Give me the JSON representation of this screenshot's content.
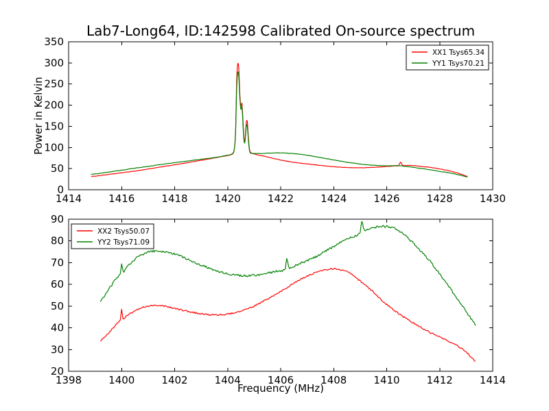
{
  "figure": {
    "title": "Lab7-Long64, ID:142598 Calibrated On-source spectrum",
    "background": "#ffffff",
    "axis_color": "#000000"
  },
  "chart_data": [
    {
      "type": "line",
      "subplot": "top",
      "title": "",
      "xlabel": "",
      "ylabel": "Power in Kelvin",
      "xlim": [
        1414,
        1430
      ],
      "ylim": [
        0,
        350
      ],
      "xticks": [
        1414,
        1416,
        1418,
        1420,
        1422,
        1424,
        1426,
        1428,
        1430
      ],
      "yticks": [
        0,
        50,
        100,
        150,
        200,
        250,
        300,
        350
      ],
      "grid": false,
      "legend_position": "upper right",
      "series": [
        {
          "name": "XX1 Tsys65.34",
          "color": "#ff0000",
          "noise_k": 0.4,
          "points": [
            [
              1414.85,
              31
            ],
            [
              1415.3,
              34.5
            ],
            [
              1415.8,
              38.5
            ],
            [
              1416.3,
              42.5
            ],
            [
              1416.8,
              47
            ],
            [
              1417.3,
              52
            ],
            [
              1417.8,
              57
            ],
            [
              1418.3,
              62
            ],
            [
              1418.8,
              67.5
            ],
            [
              1419.3,
              73
            ],
            [
              1419.7,
              77.5
            ],
            [
              1420.0,
              81
            ],
            [
              1420.1,
              82.5
            ],
            [
              1420.2,
              86
            ],
            [
              1420.25,
              95
            ],
            [
              1420.3,
              140
            ],
            [
              1420.34,
              260
            ],
            [
              1420.38,
              298
            ],
            [
              1420.42,
              288
            ],
            [
              1420.46,
              225
            ],
            [
              1420.5,
              197
            ],
            [
              1420.54,
              205
            ],
            [
              1420.58,
              160
            ],
            [
              1420.62,
              118
            ],
            [
              1420.66,
              122
            ],
            [
              1420.7,
              158
            ],
            [
              1420.74,
              162
            ],
            [
              1420.78,
              125
            ],
            [
              1420.82,
              97
            ],
            [
              1420.86,
              89
            ],
            [
              1420.95,
              85.5
            ],
            [
              1421.1,
              83
            ],
            [
              1421.4,
              79
            ],
            [
              1421.8,
              73
            ],
            [
              1422.2,
              68
            ],
            [
              1422.6,
              64
            ],
            [
              1423.0,
              61
            ],
            [
              1423.5,
              57.5
            ],
            [
              1424.0,
              54.5
            ],
            [
              1424.5,
              52.5
            ],
            [
              1425.0,
              52
            ],
            [
              1425.5,
              53
            ],
            [
              1426.0,
              55
            ],
            [
              1426.3,
              56.5
            ],
            [
              1426.45,
              57.2
            ],
            [
              1426.52,
              65
            ],
            [
              1426.6,
              58
            ],
            [
              1426.9,
              57.5
            ],
            [
              1427.2,
              56
            ],
            [
              1427.5,
              54
            ],
            [
              1427.9,
              50.5
            ],
            [
              1428.3,
              45.5
            ],
            [
              1428.7,
              39
            ],
            [
              1429.05,
              31.5
            ]
          ]
        },
        {
          "name": "YY1 Tsys70.21",
          "color": "#008000",
          "noise_k": 0.4,
          "points": [
            [
              1414.85,
              36
            ],
            [
              1415.3,
              40
            ],
            [
              1415.8,
              44.5
            ],
            [
              1416.3,
              49
            ],
            [
              1416.8,
              53.5
            ],
            [
              1417.3,
              58
            ],
            [
              1417.8,
              62.5
            ],
            [
              1418.3,
              66.5
            ],
            [
              1418.8,
              70.5
            ],
            [
              1419.3,
              74.5
            ],
            [
              1419.7,
              78
            ],
            [
              1420.0,
              82
            ],
            [
              1420.1,
              83
            ],
            [
              1420.2,
              87
            ],
            [
              1420.25,
              96
            ],
            [
              1420.3,
              135
            ],
            [
              1420.34,
              240
            ],
            [
              1420.38,
              278
            ],
            [
              1420.42,
              268
            ],
            [
              1420.46,
              215
            ],
            [
              1420.5,
              190
            ],
            [
              1420.54,
              197
            ],
            [
              1420.58,
              152
            ],
            [
              1420.62,
              113
            ],
            [
              1420.66,
              117
            ],
            [
              1420.7,
              148
            ],
            [
              1420.74,
              152
            ],
            [
              1420.78,
              118
            ],
            [
              1420.82,
              94
            ],
            [
              1420.86,
              87
            ],
            [
              1420.95,
              86
            ],
            [
              1421.2,
              85.8
            ],
            [
              1421.6,
              86.8
            ],
            [
              1422.0,
              87.3
            ],
            [
              1422.4,
              86
            ],
            [
              1422.8,
              83.5
            ],
            [
              1423.2,
              79.5
            ],
            [
              1423.6,
              75
            ],
            [
              1424.0,
              70.5
            ],
            [
              1424.4,
              66
            ],
            [
              1424.8,
              62.5
            ],
            [
              1425.2,
              59.5
            ],
            [
              1425.6,
              57.5
            ],
            [
              1426.0,
              56.8
            ],
            [
              1426.4,
              57
            ],
            [
              1426.7,
              55.5
            ],
            [
              1427.0,
              53
            ],
            [
              1427.4,
              49.5
            ],
            [
              1427.8,
              45.5
            ],
            [
              1428.2,
              41.5
            ],
            [
              1428.6,
              37
            ],
            [
              1429.05,
              30
            ]
          ]
        }
      ]
    },
    {
      "type": "line",
      "subplot": "bottom",
      "title": "",
      "xlabel": "Frequency (MHz)",
      "ylabel": "",
      "xlim": [
        1398,
        1414
      ],
      "ylim": [
        20,
        90
      ],
      "xticks": [
        1398,
        1400,
        1402,
        1404,
        1406,
        1408,
        1410,
        1412,
        1414
      ],
      "yticks": [
        20,
        30,
        40,
        50,
        60,
        70,
        80,
        90
      ],
      "grid": false,
      "legend_position": "upper left",
      "series": [
        {
          "name": "XX2 Tsys50.07",
          "color": "#ff0000",
          "noise_k": 0.35,
          "points": [
            [
              1399.2,
              34
            ],
            [
              1399.45,
              37
            ],
            [
              1399.7,
              40.3
            ],
            [
              1399.9,
              43
            ],
            [
              1399.95,
              43.5
            ],
            [
              1400.0,
              48.4
            ],
            [
              1400.05,
              44.2
            ],
            [
              1400.2,
              45.6
            ],
            [
              1400.45,
              47.5
            ],
            [
              1400.7,
              49
            ],
            [
              1401.0,
              50
            ],
            [
              1401.3,
              50.3
            ],
            [
              1401.6,
              50
            ],
            [
              1401.9,
              49.3
            ],
            [
              1402.2,
              48.4
            ],
            [
              1402.6,
              47.3
            ],
            [
              1403.0,
              46.5
            ],
            [
              1403.4,
              46
            ],
            [
              1403.8,
              46.1
            ],
            [
              1404.2,
              46.8
            ],
            [
              1404.6,
              48
            ],
            [
              1405.0,
              50
            ],
            [
              1405.4,
              52.5
            ],
            [
              1405.8,
              55.3
            ],
            [
              1406.2,
              58.3
            ],
            [
              1406.6,
              61.3
            ],
            [
              1407.0,
              63.8
            ],
            [
              1407.4,
              65.7
            ],
            [
              1407.8,
              66.9
            ],
            [
              1408.1,
              67
            ],
            [
              1408.5,
              65.8
            ],
            [
              1408.9,
              62.5
            ],
            [
              1409.4,
              57.5
            ],
            [
              1409.9,
              51.8
            ],
            [
              1410.4,
              47
            ],
            [
              1410.9,
              43
            ],
            [
              1411.4,
              39.5
            ],
            [
              1411.9,
              36.3
            ],
            [
              1412.4,
              33.4
            ],
            [
              1412.9,
              29.8
            ],
            [
              1413.35,
              24.6
            ]
          ]
        },
        {
          "name": "YY2 Tsys71.09",
          "color": "#008000",
          "noise_k": 0.5,
          "points": [
            [
              1399.2,
              52
            ],
            [
              1399.45,
              56.5
            ],
            [
              1399.7,
              61
            ],
            [
              1399.9,
              64.3
            ],
            [
              1399.95,
              64.8
            ],
            [
              1400.0,
              69.6
            ],
            [
              1400.05,
              66
            ],
            [
              1400.2,
              68
            ],
            [
              1400.45,
              71
            ],
            [
              1400.7,
              73.3
            ],
            [
              1401.0,
              74.9
            ],
            [
              1401.3,
              75.4
            ],
            [
              1401.6,
              75.1
            ],
            [
              1401.9,
              74.3
            ],
            [
              1402.2,
              73
            ],
            [
              1402.6,
              71
            ],
            [
              1403.0,
              68.9
            ],
            [
              1403.4,
              67
            ],
            [
              1403.8,
              65.5
            ],
            [
              1404.2,
              64.5
            ],
            [
              1404.6,
              64
            ],
            [
              1405.0,
              64.2
            ],
            [
              1405.4,
              64.9
            ],
            [
              1405.8,
              65.9
            ],
            [
              1406.18,
              67.3
            ],
            [
              1406.23,
              72
            ],
            [
              1406.3,
              67.8
            ],
            [
              1406.6,
              69
            ],
            [
              1407.0,
              71
            ],
            [
              1407.4,
              73.2
            ],
            [
              1407.8,
              76
            ],
            [
              1408.2,
              78.8
            ],
            [
              1408.6,
              81.5
            ],
            [
              1409.0,
              84
            ],
            [
              1409.06,
              89
            ],
            [
              1409.15,
              85
            ],
            [
              1409.4,
              86
            ],
            [
              1409.7,
              86.5
            ],
            [
              1410.0,
              86.6
            ],
            [
              1410.3,
              85.8
            ],
            [
              1410.6,
              83.5
            ],
            [
              1411.0,
              79
            ],
            [
              1411.4,
              74
            ],
            [
              1411.8,
              68
            ],
            [
              1412.2,
              61.5
            ],
            [
              1412.6,
              54.5
            ],
            [
              1413.0,
              47.5
            ],
            [
              1413.35,
              41
            ]
          ]
        }
      ]
    }
  ]
}
